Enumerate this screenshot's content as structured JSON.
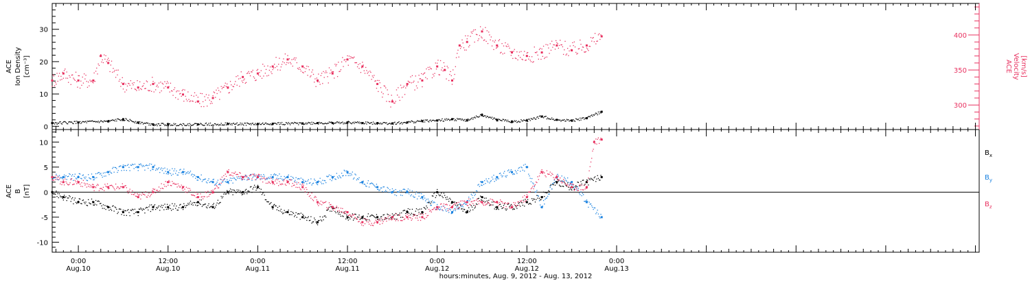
{
  "colors": {
    "black": "#000000",
    "red": "#e8305f",
    "blue": "#1a82e0"
  },
  "time_axis": {
    "xlabel": "hours:minutes, Aug.  9, 2012 - Aug. 13, 2012",
    "range_hours": [
      20.5,
      144.5
    ],
    "ticks": [
      {
        "hour": 24,
        "time": "0:00",
        "date": "Aug.10"
      },
      {
        "hour": 36,
        "time": "12:00",
        "date": "Aug.10"
      },
      {
        "hour": 48,
        "time": "0:00",
        "date": "Aug.11"
      },
      {
        "hour": 60,
        "time": "12:00",
        "date": "Aug.11"
      },
      {
        "hour": 72,
        "time": "0:00",
        "date": "Aug.12"
      },
      {
        "hour": 84,
        "time": "12:00",
        "date": "Aug.12"
      },
      {
        "hour": 96,
        "time": "0:00",
        "date": "Aug.13"
      }
    ]
  },
  "chart_data": [
    {
      "type": "scatter",
      "panel": "plasma",
      "ylabel": [
        "ACE",
        "Ion Density",
        "[cm⁻³]"
      ],
      "ylim": [
        -1,
        38
      ],
      "yticks": [
        0,
        10,
        20,
        30
      ],
      "ylabel_right": [
        "ACE",
        "Velocity",
        "[km/s]"
      ],
      "ylim_right": [
        265,
        445
      ],
      "yticks_right": [
        300,
        350,
        400
      ],
      "series": [
        {
          "color": "black",
          "axis": "left",
          "x": [
            20.5,
            24,
            28,
            30,
            32,
            34,
            36,
            40,
            44,
            48,
            50,
            54,
            56,
            58,
            60,
            62,
            64,
            66,
            68,
            70,
            72,
            74,
            76,
            78,
            80,
            82,
            84,
            86,
            88,
            90,
            92,
            94
          ],
          "values": [
            1,
            1.2,
            1.5,
            2.2,
            1.2,
            0.6,
            0.5,
            0.6,
            0.7,
            0.7,
            0.8,
            0.9,
            1.0,
            1.0,
            1.2,
            1.0,
            1.0,
            0.9,
            1.2,
            1.6,
            1.8,
            2.2,
            1.8,
            3.5,
            2.0,
            1.5,
            1.8,
            3.0,
            2.0,
            1.8,
            2.5,
            4.5
          ]
        },
        {
          "color": "red",
          "axis": "right",
          "x": [
            20.5,
            22,
            24,
            26,
            27,
            28,
            30,
            32,
            34,
            36,
            38,
            40,
            42,
            44,
            46,
            48,
            50,
            52,
            54,
            56,
            58,
            60,
            62,
            64,
            66,
            68,
            70,
            72,
            73,
            74,
            75,
            76,
            78,
            80,
            82,
            84,
            86,
            88,
            90,
            92,
            94
          ],
          "values": [
            335,
            345,
            335,
            335,
            370,
            360,
            330,
            325,
            330,
            325,
            315,
            305,
            310,
            325,
            340,
            345,
            355,
            365,
            355,
            335,
            345,
            365,
            355,
            330,
            305,
            330,
            335,
            355,
            350,
            335,
            385,
            390,
            405,
            385,
            375,
            370,
            375,
            385,
            378,
            385,
            398
          ]
        }
      ]
    },
    {
      "type": "scatter",
      "panel": "magnetic field",
      "ylabel": [
        "ACE",
        "B",
        "[nT]"
      ],
      "ylim": [
        -12,
        12.5
      ],
      "yticks": [
        -10,
        -5,
        0,
        5,
        10
      ],
      "zero_line": true,
      "series": [
        {
          "name": "B",
          "sub": "x",
          "color": "black",
          "x": [
            20.5,
            22,
            24,
            26,
            28,
            30,
            32,
            34,
            36,
            38,
            40,
            42,
            44,
            46,
            48,
            50,
            52,
            54,
            56,
            58,
            60,
            62,
            64,
            66,
            68,
            70,
            72,
            74,
            76,
            78,
            80,
            82,
            84,
            86,
            88,
            90,
            92,
            94
          ],
          "values": [
            0,
            -1,
            -2,
            -2,
            -3,
            -4,
            -4,
            -3,
            -3,
            -3,
            -2,
            -3,
            0,
            0,
            1,
            -3,
            -4,
            -5,
            -6,
            -3,
            -5,
            -5,
            -5,
            -5,
            -4,
            -4,
            0,
            -2,
            -4,
            -1,
            -3,
            -3,
            -2,
            -1,
            2,
            1,
            2,
            3
          ]
        },
        {
          "name": "B",
          "sub": "y",
          "color": "blue",
          "x": [
            20.5,
            22,
            24,
            26,
            28,
            30,
            32,
            34,
            36,
            38,
            40,
            42,
            44,
            46,
            48,
            50,
            52,
            54,
            56,
            58,
            60,
            62,
            64,
            66,
            68,
            70,
            72,
            74,
            76,
            78,
            80,
            82,
            84,
            86,
            88,
            90,
            92,
            94
          ],
          "values": [
            3,
            3,
            3,
            3,
            4,
            5,
            5,
            5,
            4,
            4,
            3,
            2,
            2,
            3,
            3,
            3,
            3,
            2,
            2,
            3,
            4,
            2,
            1,
            0,
            0,
            -1,
            -3,
            -4,
            -2,
            2,
            3,
            4,
            5,
            -3,
            3,
            2,
            -2,
            -5
          ]
        },
        {
          "name": "B",
          "sub": "z",
          "color": "red",
          "x": [
            20.5,
            22,
            24,
            26,
            28,
            30,
            32,
            34,
            36,
            38,
            40,
            42,
            44,
            46,
            48,
            50,
            52,
            54,
            56,
            58,
            60,
            62,
            64,
            66,
            68,
            70,
            72,
            74,
            76,
            78,
            80,
            82,
            84,
            86,
            88,
            90,
            92,
            93,
            94
          ],
          "values": [
            3,
            2,
            2,
            1,
            1,
            1,
            -1,
            0,
            2,
            1,
            -1,
            0,
            4,
            3,
            3,
            2,
            2,
            1,
            -2,
            -3,
            -4,
            -6,
            -6,
            -5,
            -5,
            -5,
            -3,
            -3,
            -2,
            -2,
            -2,
            -3,
            -1,
            4,
            3,
            1,
            1,
            10,
            10.5
          ]
        }
      ]
    }
  ]
}
